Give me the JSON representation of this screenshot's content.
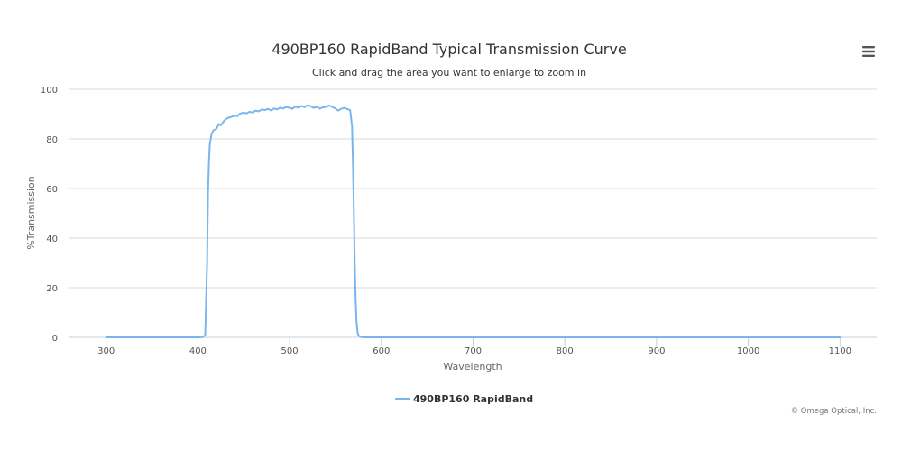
{
  "menu": {
    "icon": "hamburger-menu-icon"
  },
  "credit": "© Omega Optical, Inc.",
  "colors": {
    "series": "#7cb5ec",
    "grid": "#d8d8d8",
    "axis_line": "#c0d0e0",
    "title": "#333333",
    "subtitle": "#333333",
    "tick_label": "#555555",
    "axis_title": "#666666",
    "legend_text": "#333333",
    "credit": "#777777",
    "menu": "#555555"
  },
  "chart_data": {
    "type": "line",
    "title": "490BP160 RapidBand Typical Transmission Curve",
    "subtitle": "Click and drag the area you want to enlarge to zoom in",
    "xlabel": "Wavelength",
    "ylabel": "%Transmission",
    "xlim": [
      260,
      1140
    ],
    "ylim": [
      0,
      100
    ],
    "xticks": [
      300,
      400,
      500,
      600,
      700,
      800,
      900,
      1000,
      1100
    ],
    "yticks": [
      0,
      20,
      40,
      60,
      80,
      100
    ],
    "grid": true,
    "legend_position": "bottom-center",
    "series": [
      {
        "name": "490BP160 RapidBand",
        "x": [
          300,
          350,
          400,
          405,
          408,
          410,
          411,
          412,
          413,
          415,
          417,
          420,
          423,
          425,
          428,
          430,
          433,
          436,
          440,
          443,
          446,
          450,
          453,
          456,
          460,
          463,
          466,
          470,
          473,
          476,
          480,
          483,
          486,
          490,
          493,
          496,
          500,
          503,
          506,
          510,
          513,
          516,
          520,
          523,
          526,
          530,
          533,
          536,
          540,
          543,
          546,
          550,
          553,
          556,
          560,
          563,
          566,
          568,
          569,
          570,
          571,
          572,
          573,
          574,
          575,
          577,
          580,
          600,
          700,
          800,
          900,
          1000,
          1100
        ],
        "y": [
          0,
          0,
          0,
          0.1,
          0.8,
          30,
          58,
          70,
          78,
          82,
          83.5,
          84,
          86,
          85.5,
          87,
          87.8,
          88.5,
          88.8,
          89.4,
          89.2,
          90.2,
          90.6,
          90.3,
          90.9,
          90.7,
          91.4,
          91.1,
          91.9,
          91.6,
          92.1,
          91.5,
          92.3,
          91.9,
          92.6,
          92.2,
          92.9,
          92.5,
          92.1,
          93.0,
          92.6,
          93.3,
          92.8,
          93.6,
          93.2,
          92.5,
          92.9,
          92.2,
          92.7,
          92.9,
          93.5,
          93.0,
          92.2,
          91.4,
          92.1,
          92.5,
          92.0,
          91.6,
          85,
          70,
          50,
          30,
          15,
          6,
          2,
          0.8,
          0.2,
          0,
          0,
          0,
          0,
          0,
          0,
          0
        ]
      }
    ]
  }
}
